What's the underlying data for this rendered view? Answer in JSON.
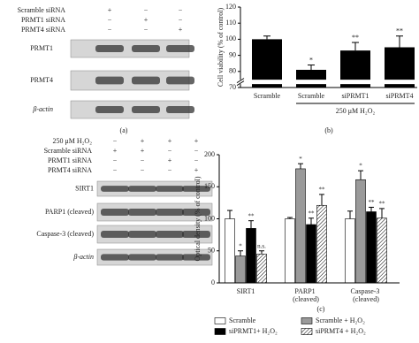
{
  "panel_a": {
    "label": "(a)",
    "conditions": [
      "Scramble siRNA",
      "PRMT1 siRNA",
      "PRMT4 siRNA"
    ],
    "signs": [
      [
        "+",
        "−",
        "−"
      ],
      [
        "−",
        "+",
        "−"
      ],
      [
        "−",
        "−",
        "+"
      ]
    ],
    "bands": [
      "PRMT1",
      "PRMT4",
      "β-actin"
    ]
  },
  "panel_c_blot": {
    "conditions": [
      "250 μM H₂O₂",
      "Scramble siRNA",
      "PRMT1 siRNA",
      "PRMT4 siRNA"
    ],
    "signs": [
      [
        "−",
        "+",
        "+",
        "+"
      ],
      [
        "+",
        "+",
        "−",
        "−"
      ],
      [
        "−",
        "−",
        "+",
        "−"
      ],
      [
        "−",
        "−",
        "−",
        "+"
      ]
    ],
    "bands": [
      "SIRT1",
      "PARP1 (cleaved)",
      "Caspase-3 (cleaved)",
      "β-actin"
    ]
  },
  "chart_data": [
    {
      "type": "bar",
      "label": "(b)",
      "y_label": "Cell viability (% of control)",
      "categories": [
        "Scramble",
        "Scramble",
        "siPRMT1",
        "siPRMT4"
      ],
      "values": [
        100,
        81,
        93,
        95
      ],
      "errors": [
        2,
        3,
        5,
        7
      ],
      "annotations": [
        null,
        "*",
        "**",
        "**"
      ],
      "group_label": "250 μM H₂O₂",
      "color": "#000000",
      "axis_break": true,
      "ylim": [
        70,
        120
      ],
      "yticks": [
        70,
        80,
        90,
        100,
        110,
        120
      ]
    },
    {
      "type": "grouped_bar",
      "label": "(c)",
      "y_label": "Optical density (% of control)",
      "categories": [
        "SIRT1",
        "PARP1 (cleaved)",
        "Caspase-3 (cleaved)"
      ],
      "series": [
        {
          "name": "Scramble",
          "color": "#ffffff",
          "values": [
            100,
            100,
            100
          ],
          "errors": [
            13,
            2,
            12
          ],
          "annotations": [
            null,
            null,
            null
          ]
        },
        {
          "name": "Scramble + H₂O₂",
          "color": "#9a9a9a",
          "values": [
            42,
            178,
            161
          ],
          "errors": [
            8,
            8,
            14
          ],
          "annotations": [
            "*",
            "*",
            "*"
          ]
        },
        {
          "name": "siPRMT1+ H₂O₂",
          "color": "#000000",
          "values": [
            85,
            91,
            111
          ],
          "errors": [
            12,
            10,
            7
          ],
          "annotations": [
            "**",
            "**",
            "**"
          ]
        },
        {
          "name": "siPRMT4 + H₂O₂",
          "color": "#ffffff",
          "hatch": true,
          "values": [
            45,
            121,
            101
          ],
          "errors": [
            5,
            17,
            15
          ],
          "annotations": [
            "n.s.",
            "**",
            "**"
          ]
        }
      ],
      "ylim": [
        0,
        200
      ],
      "yticks": [
        0,
        50,
        100,
        150,
        200
      ]
    }
  ]
}
